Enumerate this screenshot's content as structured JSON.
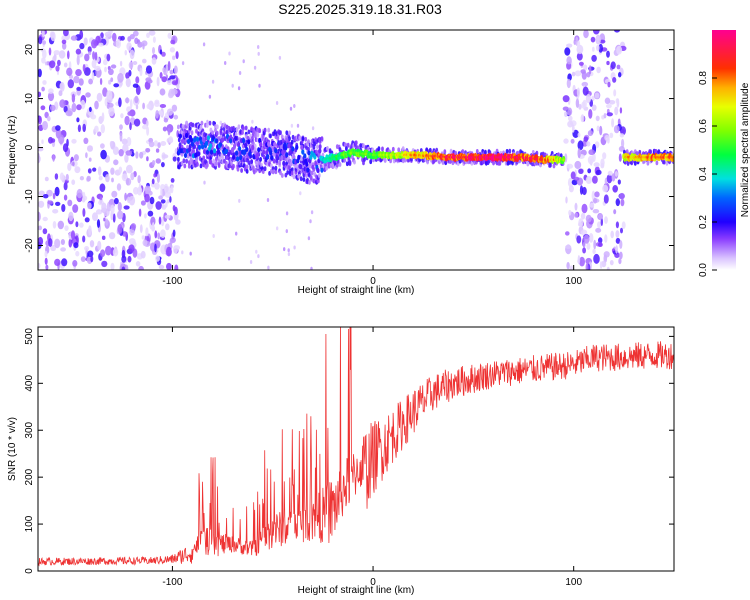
{
  "page": {
    "title": "S225.2025.319.18.31.R03"
  },
  "chart_data": [
    {
      "type": "heatmap",
      "name": "spectrogram",
      "xlabel": "Height of straight line (km)",
      "ylabel": "Frequency (Hz)",
      "xlim": [
        -167,
        150
      ],
      "ylim": [
        -25,
        24
      ],
      "x_ticks": [
        -100,
        0,
        100
      ],
      "y_ticks": [
        -20,
        -10,
        0,
        10,
        20
      ],
      "colorbar": {
        "label": "Normalized spectral amplitude",
        "range": [
          0.0,
          1.0
        ],
        "ticks": [
          "0.0",
          "0.2",
          "0.4",
          "0.6",
          "0.8"
        ],
        "colors": [
          "#ffffff",
          "#e8d8ff",
          "#9a5cff",
          "#5a00ff",
          "#0000ff",
          "#00c8ff",
          "#00ff80",
          "#40ff00",
          "#c0ff00",
          "#ffff00",
          "#ffa000",
          "#ff3000",
          "#ff0080"
        ]
      },
      "noise_bands_km": [
        [
          -167,
          -97
        ],
        [
          96,
          125
        ]
      ],
      "signal_band": {
        "x": [
          -97,
          -80,
          -60,
          -40,
          -30,
          -20,
          -10,
          0,
          20,
          40,
          60,
          75,
          85,
          95,
          125,
          150
        ],
        "freq_hz": [
          0.5,
          0.5,
          -0.5,
          -1.5,
          -3,
          -2,
          -1,
          -1.5,
          -1.5,
          -2,
          -2,
          -2,
          -2.5,
          -2.5,
          -2,
          -2
        ],
        "peak_amp": [
          0.25,
          0.3,
          0.2,
          0.25,
          0.3,
          0.45,
          0.55,
          0.5,
          0.7,
          0.85,
          0.95,
          0.85,
          0.8,
          0.6,
          0.7,
          0.8
        ]
      }
    },
    {
      "type": "line",
      "name": "snr",
      "xlabel": "Height of straight line (km)",
      "ylabel": "SNR (10 * v/v)",
      "xlim": [
        -167,
        150
      ],
      "ylim": [
        0,
        520
      ],
      "x_ticks": [
        -100,
        0,
        100
      ],
      "y_ticks": [
        0,
        100,
        200,
        300,
        400,
        500
      ],
      "color": "#ee3333",
      "envelope": {
        "x": [
          -167,
          -110,
          -100,
          -90,
          -85,
          -80,
          -70,
          -60,
          -50,
          -40,
          -30,
          -20,
          -15,
          -10,
          -5,
          0,
          10,
          20,
          30,
          40,
          60,
          80,
          100,
          110,
          120,
          140,
          150
        ],
        "baseline": [
          20,
          22,
          25,
          40,
          55,
          45,
          50,
          40,
          70,
          80,
          90,
          100,
          150,
          180,
          210,
          240,
          290,
          340,
          380,
          400,
          420,
          430,
          440,
          455,
          455,
          460,
          460
        ],
        "noise": [
          8,
          8,
          10,
          25,
          60,
          60,
          35,
          35,
          80,
          70,
          90,
          150,
          120,
          110,
          100,
          80,
          60,
          50,
          40,
          35,
          30,
          30,
          30,
          30,
          30,
          30,
          30
        ]
      }
    }
  ]
}
